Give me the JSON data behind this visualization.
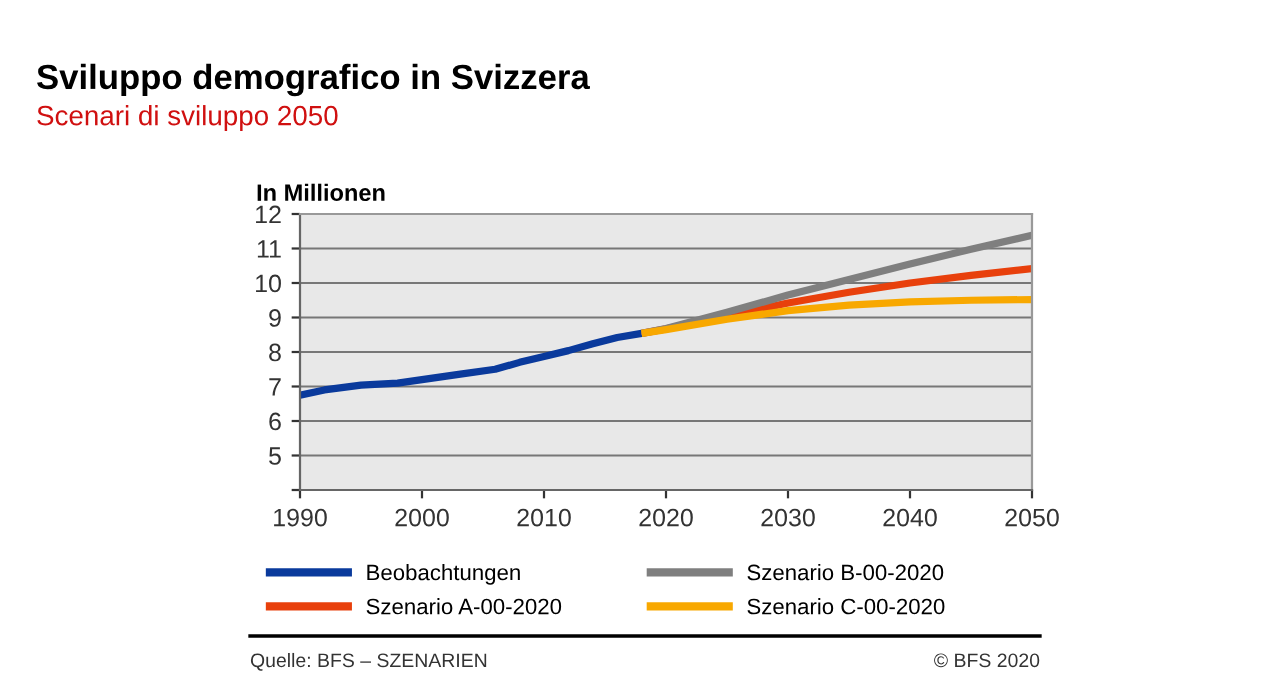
{
  "chart_data": {
    "type": "line",
    "title": "Sviluppo demografico in Svizzera",
    "subtitle": "Scenari di sviluppo 2050",
    "ylabel": "In Millionen",
    "xlim": [
      1990,
      2050
    ],
    "xticks": [
      1990,
      2000,
      2010,
      2020,
      2030,
      2040,
      2050
    ],
    "ylim": [
      4,
      12
    ],
    "yticks": [
      {
        "value": 4,
        "label": null
      },
      5,
      6,
      7,
      8,
      9,
      10,
      11,
      12
    ],
    "grid": "y",
    "legend": "bottom",
    "line_style": "solid",
    "marker": "none",
    "series": [
      {
        "name": "Beobachtungen",
        "color": "#0a3a9c",
        "x": [
          1990,
          1992,
          1995,
          1998,
          2000,
          2003,
          2006,
          2008,
          2010,
          2012,
          2014,
          2016,
          2018
        ],
        "values": [
          6.75,
          6.9,
          7.04,
          7.1,
          7.2,
          7.35,
          7.5,
          7.7,
          7.87,
          8.04,
          8.24,
          8.42,
          8.54
        ]
      },
      {
        "name": "Szenario A-00-2020",
        "color": "#e8400c",
        "x": [
          2018,
          2020,
          2025,
          2030,
          2035,
          2040,
          2045,
          2050
        ],
        "values": [
          8.54,
          8.67,
          9.05,
          9.42,
          9.73,
          10.0,
          10.22,
          10.42
        ]
      },
      {
        "name": "Szenario B-00-2020",
        "color": "#7f7f7f",
        "x": [
          2018,
          2020,
          2025,
          2030,
          2035,
          2040,
          2045,
          2050
        ],
        "values": [
          8.54,
          8.68,
          9.15,
          9.65,
          10.1,
          10.55,
          10.98,
          11.38
        ]
      },
      {
        "name": "Szenario C-00-2020",
        "color": "#f8a800",
        "x": [
          2018,
          2020,
          2025,
          2030,
          2035,
          2040,
          2045,
          2050
        ],
        "values": [
          8.54,
          8.65,
          8.95,
          9.2,
          9.36,
          9.45,
          9.5,
          9.52
        ]
      }
    ],
    "annotations": [
      "Quelle: BFS – SZENARIEN",
      "© BFS 2020"
    ]
  }
}
